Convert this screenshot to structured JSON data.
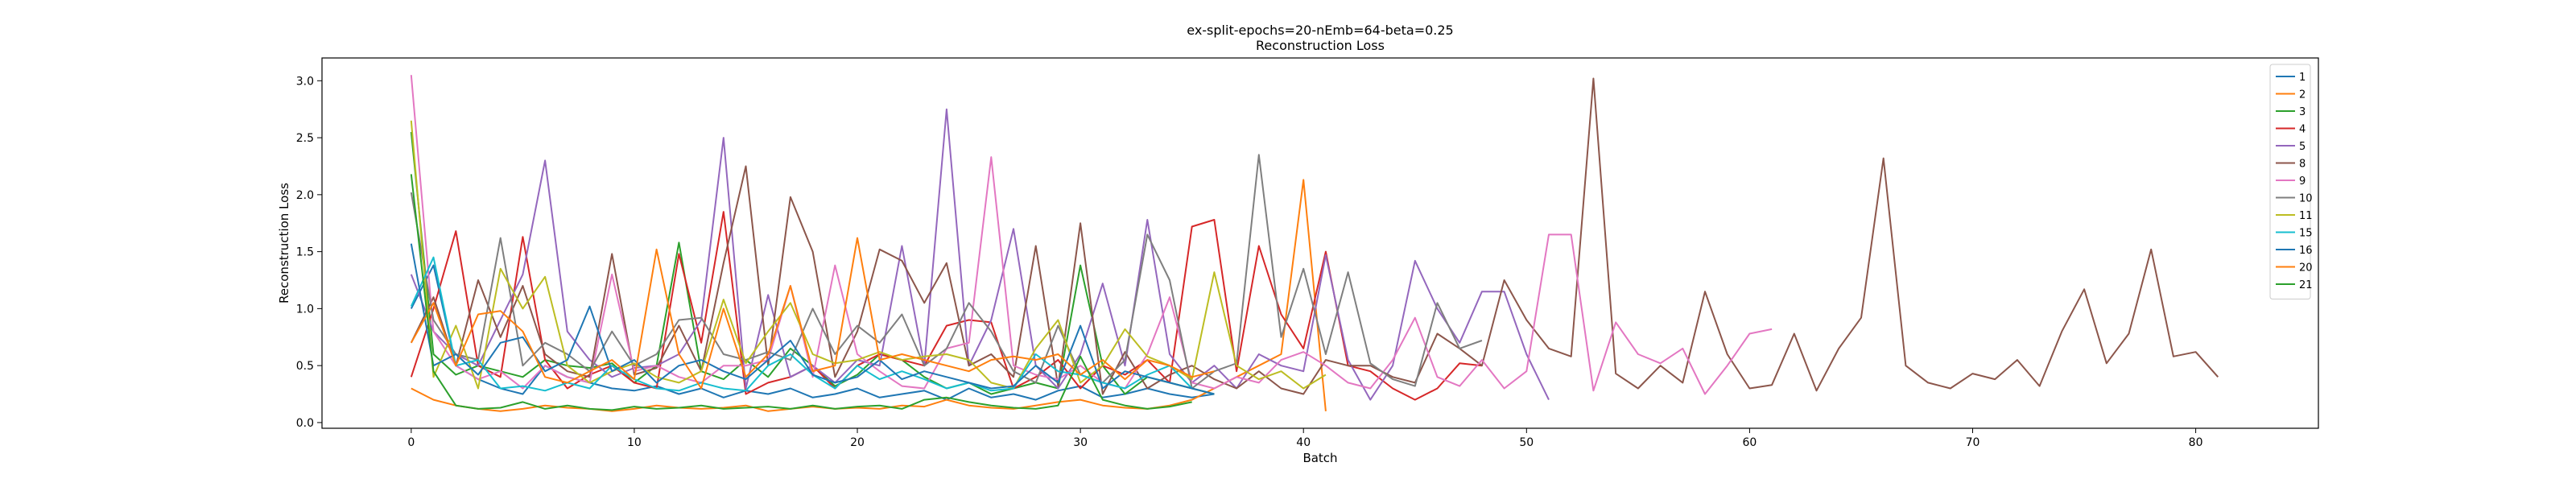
{
  "chart_data": {
    "type": "line",
    "title": "ex-split-epochs=20-nEmb=64-beta=0.25",
    "subtitle": "Reconstruction Loss",
    "xlabel": "Batch",
    "ylabel": "Reconstruction Loss",
    "xlim": [
      -4,
      85.5
    ],
    "ylim": [
      -0.05,
      3.2
    ],
    "xticks": [
      0,
      10,
      20,
      30,
      40,
      50,
      60,
      70,
      80
    ],
    "yticks": [
      0.0,
      0.5,
      1.0,
      1.5,
      2.0,
      2.5,
      3.0
    ],
    "grid": false,
    "legend_position": "top-right",
    "series": [
      {
        "name": "1",
        "color": "#1f77b4",
        "values": [
          1.0,
          1.38,
          0.5,
          0.38,
          0.3,
          0.25,
          0.5,
          0.4,
          0.35,
          0.3,
          0.28,
          0.32,
          0.25,
          0.3,
          0.22,
          0.28,
          0.25,
          0.3,
          0.22,
          0.25,
          0.3,
          0.22,
          0.25,
          0.28,
          0.2,
          0.3,
          0.22,
          0.25,
          0.2,
          0.28,
          0.32,
          0.22,
          0.25,
          0.3,
          0.25,
          0.22,
          0.25
        ]
      },
      {
        "name": "2",
        "color": "#ff7f0e",
        "values": [
          0.3,
          0.2,
          0.15,
          0.12,
          0.1,
          0.12,
          0.15,
          0.13,
          0.12,
          0.1,
          0.12,
          0.15,
          0.13,
          0.12,
          0.13,
          0.15,
          0.1,
          0.12,
          0.14,
          0.12,
          0.13,
          0.12,
          0.15,
          0.14,
          0.2,
          0.15,
          0.13,
          0.12,
          0.15,
          0.18,
          0.2,
          0.15,
          0.13,
          0.12,
          0.15,
          0.2,
          0.3,
          0.4,
          0.5,
          0.6,
          2.13,
          0.1
        ]
      },
      {
        "name": "3",
        "color": "#2ca02c",
        "values": [
          2.55,
          0.6,
          0.42,
          0.5,
          0.45,
          0.4,
          0.55,
          0.5,
          0.48,
          0.52,
          0.35,
          0.5,
          1.58,
          0.45,
          0.38,
          0.55,
          0.4,
          0.65,
          0.5,
          0.32,
          0.42,
          0.6,
          0.55,
          0.4,
          0.3,
          0.35,
          0.25,
          0.3,
          0.35,
          0.3,
          1.38,
          0.5,
          0.25,
          0.4,
          0.35,
          0.3,
          0.25
        ]
      },
      {
        "name": "4",
        "color": "#d62728",
        "values": [
          0.4,
          1.0,
          1.68,
          0.5,
          0.4,
          1.63,
          0.55,
          0.3,
          0.42,
          0.5,
          0.35,
          0.3,
          1.48,
          0.7,
          1.85,
          0.25,
          0.35,
          0.4,
          0.5,
          0.3,
          0.5,
          0.6,
          0.55,
          0.5,
          0.85,
          0.9,
          0.88,
          0.3,
          0.4,
          0.55,
          0.3,
          0.5,
          0.42,
          0.55,
          0.35,
          1.72,
          1.78,
          0.45,
          1.55,
          0.95,
          0.65,
          1.5,
          0.5,
          0.45,
          0.3,
          0.2,
          0.3,
          0.52,
          0.5
        ]
      },
      {
        "name": "5",
        "color": "#9467bd",
        "values": [
          1.3,
          0.8,
          0.6,
          0.5,
          0.9,
          1.3,
          2.3,
          0.8,
          0.55,
          0.4,
          0.48,
          0.5,
          0.6,
          0.9,
          2.5,
          0.3,
          1.12,
          0.4,
          0.5,
          0.35,
          0.55,
          0.5,
          1.55,
          0.5,
          2.75,
          0.5,
          0.9,
          1.7,
          0.5,
          0.3,
          0.6,
          1.22,
          0.5,
          1.78,
          0.6,
          0.35,
          0.5,
          0.3,
          0.6,
          0.5,
          0.45,
          1.47,
          0.55,
          0.2,
          0.5,
          1.42,
          1.0,
          0.7,
          1.15,
          1.15,
          0.6,
          0.2
        ]
      },
      {
        "name": "8",
        "color": "#8c564b",
        "values": [
          0.7,
          1.1,
          0.5,
          1.25,
          0.75,
          1.2,
          0.6,
          0.45,
          0.4,
          1.48,
          0.42,
          0.48,
          0.85,
          0.45,
          1.4,
          2.25,
          0.5,
          1.98,
          1.5,
          0.4,
          0.8,
          1.52,
          1.42,
          1.05,
          1.4,
          0.5,
          0.6,
          0.4,
          1.55,
          0.32,
          1.75,
          0.25,
          0.62,
          0.3,
          0.42,
          0.5,
          0.38,
          0.3,
          0.45,
          0.3,
          0.25,
          0.55,
          0.5,
          0.5,
          0.4,
          0.35,
          0.78,
          0.65,
          0.5,
          1.25,
          0.9,
          0.65,
          0.58,
          3.02,
          0.43,
          0.3,
          0.5,
          0.35,
          1.15,
          0.6,
          0.3,
          0.33,
          0.78,
          0.28,
          0.65,
          0.92,
          2.32,
          0.5,
          0.35,
          0.3,
          0.43,
          0.38,
          0.55,
          0.32,
          0.8,
          1.17,
          0.52,
          0.78,
          1.52,
          0.58,
          0.62,
          0.4
        ]
      },
      {
        "name": "9",
        "color": "#e377c2",
        "values": [
          3.05,
          0.8,
          0.5,
          0.38,
          0.45,
          0.3,
          0.5,
          0.4,
          0.35,
          1.3,
          0.45,
          0.5,
          0.4,
          0.35,
          0.5,
          0.5,
          0.55,
          1.2,
          0.4,
          1.38,
          0.6,
          0.45,
          0.32,
          0.3,
          0.65,
          0.7,
          2.33,
          0.5,
          0.42,
          0.38,
          0.5,
          0.35,
          0.3,
          0.6,
          1.1,
          0.35,
          0.3,
          0.4,
          0.35,
          0.55,
          0.62,
          0.5,
          0.35,
          0.3,
          0.55,
          0.92,
          0.4,
          0.32,
          0.55,
          0.3,
          0.45,
          1.65,
          1.65,
          0.28,
          0.88,
          0.6,
          0.52,
          0.65,
          0.25,
          0.5,
          0.78,
          0.82
        ]
      },
      {
        "name": "10",
        "color": "#7f7f7f",
        "values": [
          2.02,
          0.9,
          0.6,
          0.55,
          1.62,
          0.5,
          0.7,
          0.6,
          0.45,
          0.8,
          0.5,
          0.6,
          0.9,
          0.92,
          0.6,
          0.55,
          0.62,
          0.55,
          1.0,
          0.6,
          0.85,
          0.7,
          0.95,
          0.5,
          0.65,
          1.05,
          0.8,
          0.45,
          0.35,
          0.85,
          0.42,
          0.35,
          0.55,
          1.65,
          1.25,
          0.3,
          0.45,
          0.52,
          2.35,
          0.75,
          1.35,
          0.6,
          1.32,
          0.52,
          0.38,
          0.32,
          1.05,
          0.65,
          0.72
        ]
      },
      {
        "name": "11",
        "color": "#bcbd22",
        "values": [
          2.65,
          0.4,
          0.85,
          0.3,
          1.35,
          1.0,
          1.28,
          0.5,
          0.35,
          0.45,
          0.52,
          0.4,
          0.35,
          0.45,
          1.08,
          0.52,
          0.8,
          1.05,
          0.6,
          0.52,
          0.55,
          0.62,
          0.55,
          0.58,
          0.6,
          0.55,
          0.35,
          0.3,
          0.65,
          0.9,
          0.35,
          0.5,
          0.82,
          0.58,
          0.5,
          0.38,
          1.32,
          0.5,
          0.38,
          0.45,
          0.3,
          0.42
        ]
      },
      {
        "name": "15",
        "color": "#17becf",
        "values": [
          1.02,
          1.45,
          0.5,
          0.55,
          0.3,
          0.32,
          0.28,
          0.35,
          0.3,
          0.5,
          0.38,
          0.3,
          0.28,
          0.35,
          0.3,
          0.28,
          0.5,
          0.6,
          0.42,
          0.3,
          0.5,
          0.38,
          0.45,
          0.38,
          0.3,
          0.35,
          0.28,
          0.3,
          0.6,
          0.45,
          0.42,
          0.35,
          0.3,
          0.42,
          0.5,
          0.3
        ]
      },
      {
        "name": "16",
        "color": "#1f77b4",
        "values": [
          1.57,
          0.5,
          0.6,
          0.42,
          0.7,
          0.75,
          0.45,
          0.55,
          1.02,
          0.45,
          0.55,
          0.35,
          0.5,
          0.55,
          0.45,
          0.38,
          0.55,
          0.72,
          0.42,
          0.35,
          0.4,
          0.55,
          0.38,
          0.45,
          0.4,
          0.35,
          0.3,
          0.32,
          0.5,
          0.35,
          0.85,
          0.3,
          0.45,
          0.4,
          0.35,
          0.3,
          0.25
        ]
      },
      {
        "name": "20",
        "color": "#ff7f0e",
        "values": [
          0.7,
          1.05,
          0.5,
          0.95,
          0.98,
          0.8,
          0.4,
          0.35,
          0.45,
          0.55,
          0.38,
          1.52,
          0.6,
          0.3,
          1.0,
          0.4,
          0.6,
          1.2,
          0.45,
          0.5,
          1.62,
          0.55,
          0.6,
          0.55,
          0.5,
          0.45,
          0.55,
          0.58,
          0.55,
          0.6,
          0.42,
          0.55,
          0.38,
          0.55,
          0.5,
          0.4,
          0.45
        ]
      },
      {
        "name": "21",
        "color": "#2ca02c",
        "values": [
          2.18,
          0.45,
          0.15,
          0.12,
          0.13,
          0.18,
          0.12,
          0.15,
          0.12,
          0.11,
          0.14,
          0.12,
          0.13,
          0.15,
          0.12,
          0.13,
          0.14,
          0.12,
          0.15,
          0.12,
          0.14,
          0.15,
          0.12,
          0.2,
          0.22,
          0.18,
          0.15,
          0.13,
          0.12,
          0.15,
          0.58,
          0.2,
          0.15,
          0.12,
          0.14,
          0.18
        ]
      }
    ]
  }
}
